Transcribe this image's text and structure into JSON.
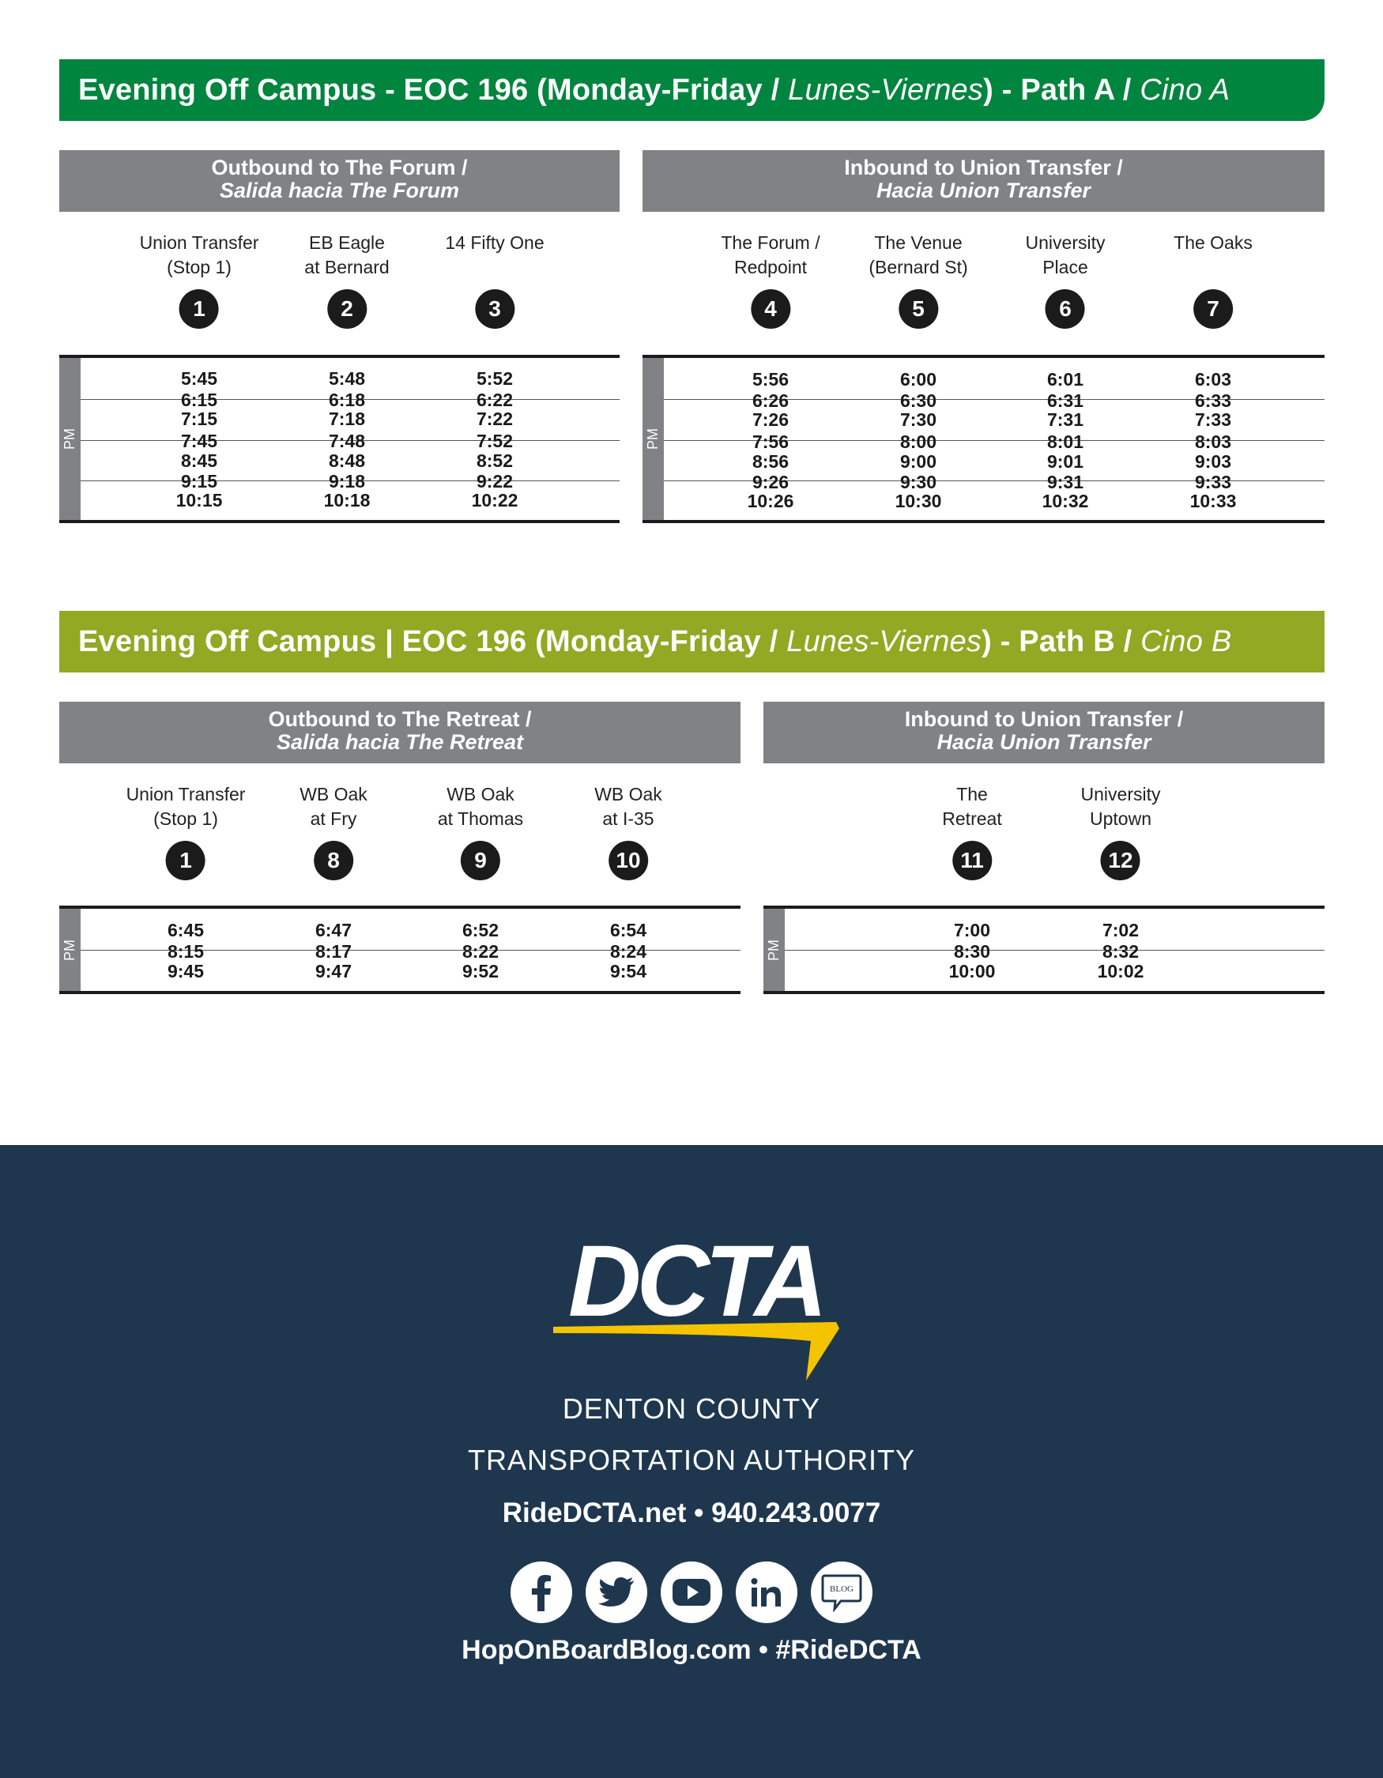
{
  "section_a": {
    "title": "Evening Off Campus - EOC 196 (Monday-Friday /",
    "title_italic": "Lunes-Viernes",
    "title_rest": ") - Path A /",
    "path_italic": "Cino A",
    "outbound": {
      "heading": "Outbound to The Forum /",
      "heading_es": "Salida hacia The Forum",
      "stops": [
        {
          "line1": "Union Transfer",
          "line2": "(Stop 1)",
          "num": "1"
        },
        {
          "line1": "EB Eagle",
          "line2": "at Bernard",
          "num": "2"
        },
        {
          "line1": "14 Fifty One",
          "line2": "",
          "num": "3"
        }
      ],
      "period": "PM",
      "rows": [
        [
          "5:45",
          "5:48",
          "5:52"
        ],
        [
          "6:15",
          "6:18",
          "6:22"
        ],
        [
          "7:15",
          "7:18",
          "7:22"
        ],
        [
          "7:45",
          "7:48",
          "7:52"
        ],
        [
          "8:45",
          "8:48",
          "8:52"
        ],
        [
          "9:15",
          "9:18",
          "9:22"
        ],
        [
          "10:15",
          "10:18",
          "10:22"
        ]
      ]
    },
    "inbound": {
      "heading": "Inbound to Union Transfer /",
      "heading_es": "Hacia Union Transfer",
      "stops": [
        {
          "line1": "The Forum /",
          "line2": "Redpoint",
          "num": "4"
        },
        {
          "line1": "The Venue",
          "line2": "(Bernard St)",
          "num": "5"
        },
        {
          "line1": "University",
          "line2": "Place",
          "num": "6"
        },
        {
          "line1": "The Oaks",
          "line2": "",
          "num": "7"
        }
      ],
      "period": "PM",
      "rows": [
        [
          "5:56",
          "6:00",
          "6:01",
          "6:03"
        ],
        [
          "6:26",
          "6:30",
          "6:31",
          "6:33"
        ],
        [
          "7:26",
          "7:30",
          "7:31",
          "7:33"
        ],
        [
          "7:56",
          "8:00",
          "8:01",
          "8:03"
        ],
        [
          "8:56",
          "9:00",
          "9:01",
          "9:03"
        ],
        [
          "9:26",
          "9:30",
          "9:31",
          "9:33"
        ],
        [
          "10:26",
          "10:30",
          "10:32",
          "10:33"
        ]
      ]
    }
  },
  "section_b": {
    "title": "Evening Off Campus | EOC 196 (Monday-Friday /",
    "title_italic": "Lunes-Viernes",
    "title_rest": ") - Path B /",
    "path_italic": "Cino B",
    "outbound": {
      "heading": "Outbound to The Retreat /",
      "heading_es": "Salida hacia The Retreat",
      "stops": [
        {
          "line1": "Union Transfer",
          "line2": "(Stop 1)",
          "num": "1"
        },
        {
          "line1": "WB Oak",
          "line2": "at Fry",
          "num": "8"
        },
        {
          "line1": "WB Oak",
          "line2": "at Thomas",
          "num": "9"
        },
        {
          "line1": "WB Oak",
          "line2": "at I-35",
          "num": "10"
        }
      ],
      "period": "PM",
      "rows": [
        [
          "6:45",
          "6:47",
          "6:52",
          "6:54"
        ],
        [
          "8:15",
          "8:17",
          "8:22",
          "8:24"
        ],
        [
          "9:45",
          "9:47",
          "9:52",
          "9:54"
        ]
      ]
    },
    "inbound": {
      "heading": "Inbound to Union Transfer /",
      "heading_es": "Hacia Union Transfer",
      "stops": [
        {
          "line1": "The",
          "line2": "Retreat",
          "num": "11"
        },
        {
          "line1": "University",
          "line2": "Uptown",
          "num": "12"
        }
      ],
      "period": "PM",
      "rows": [
        [
          "7:00",
          "7:02"
        ],
        [
          "8:30",
          "8:32"
        ],
        [
          "10:00",
          "10:02"
        ]
      ]
    }
  },
  "footer": {
    "logo_text": "DCTA",
    "org_line1": "DENTON COUNTY",
    "org_line2": "TRANSPORTATION AUTHORITY",
    "contact": "RideDCTA.net  •  940.243.0077",
    "social": [
      "facebook-icon",
      "twitter-icon",
      "youtube-icon",
      "linkedin-icon",
      "blog-icon"
    ],
    "blog_label": "BLOG",
    "tagline": "HopOnBoardBlog.com  •  #RideDCTA"
  },
  "colors": {
    "path_a_green": "#00853f",
    "path_b_green": "#93a823",
    "header_gray": "#808285",
    "footer_navy": "#1f374e",
    "logo_yellow": "#f5c400"
  }
}
